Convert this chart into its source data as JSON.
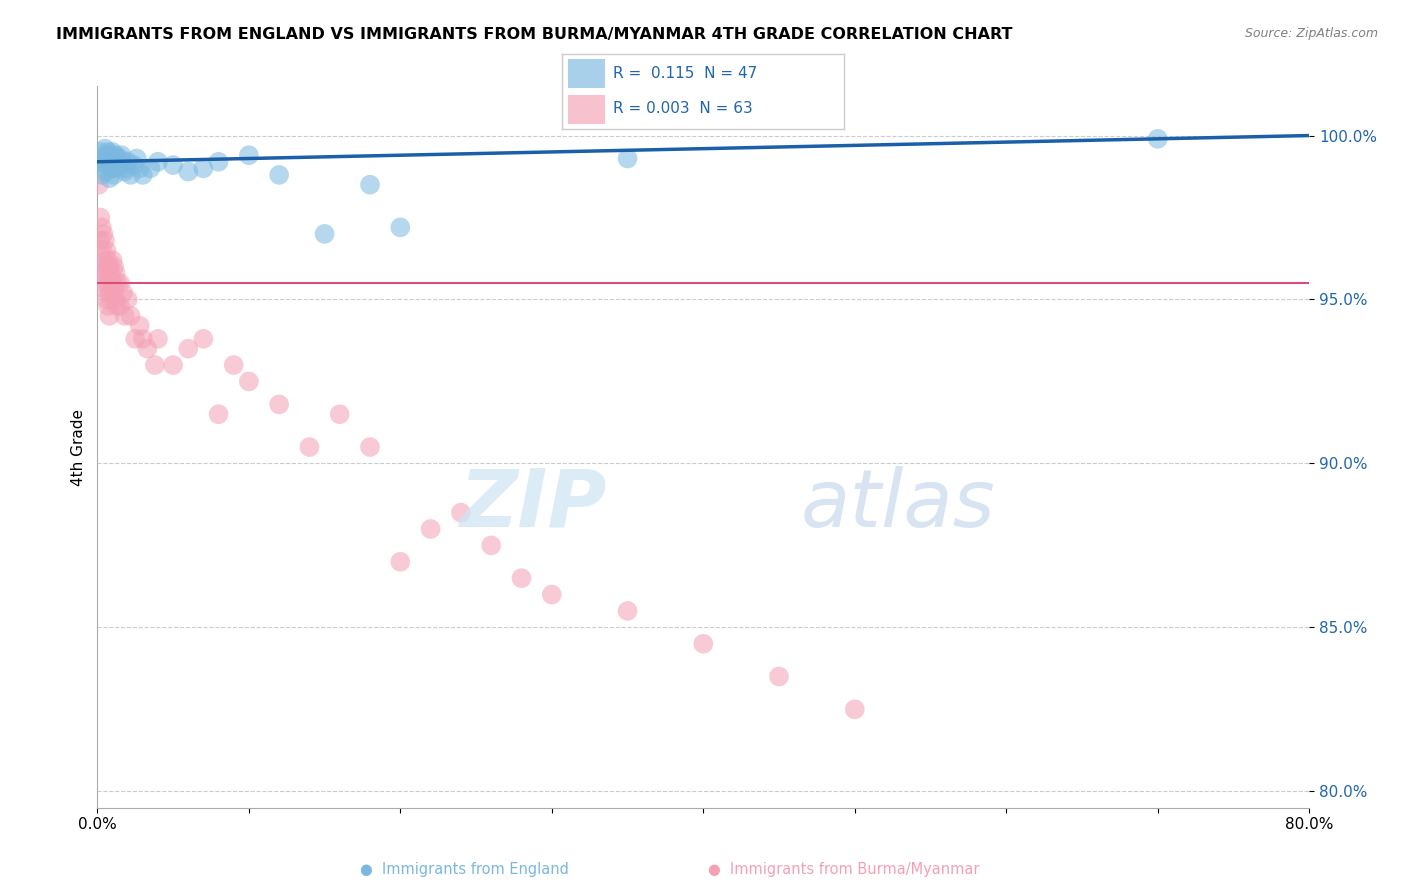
{
  "title": "IMMIGRANTS FROM ENGLAND VS IMMIGRANTS FROM BURMA/MYANMAR 4TH GRADE CORRELATION CHART",
  "source_text": "Source: ZipAtlas.com",
  "ylabel": "4th Grade",
  "xlim": [
    0.0,
    80.0
  ],
  "ylim": [
    79.5,
    101.5
  ],
  "yticks": [
    80.0,
    85.0,
    90.0,
    95.0,
    100.0
  ],
  "ytick_labels": [
    "80.0%",
    "85.0%",
    "90.0%",
    "95.0%",
    "100.0%"
  ],
  "xticks": [
    0.0,
    10.0,
    20.0,
    30.0,
    40.0,
    50.0,
    60.0,
    70.0,
    80.0
  ],
  "xtick_labels": [
    "0.0%",
    "",
    "",
    "",
    "",
    "",
    "",
    "",
    "80.0%"
  ],
  "legend_R_england": "0.115",
  "legend_N_england": "47",
  "legend_R_burma": "0.003",
  "legend_N_burma": "63",
  "england_color": "#7ab8e0",
  "burma_color": "#f4a0b5",
  "england_line_color": "#1a5fa8",
  "burma_line_color": "#d94f7a",
  "grid_color": "#cccccc",
  "eng_line_x0": 0.0,
  "eng_line_y0": 99.2,
  "eng_line_x1": 80.0,
  "eng_line_y1": 100.0,
  "bur_line_x0": 0.0,
  "bur_line_y0": 95.5,
  "bur_line_x1": 80.0,
  "bur_line_y1": 95.5,
  "blue_scatter_x": [
    0.2,
    0.3,
    0.3,
    0.4,
    0.5,
    0.5,
    0.6,
    0.6,
    0.7,
    0.7,
    0.8,
    0.8,
    0.9,
    0.9,
    1.0,
    1.0,
    1.1,
    1.1,
    1.2,
    1.2,
    1.3,
    1.3,
    1.4,
    1.5,
    1.6,
    1.7,
    1.8,
    1.9,
    2.0,
    2.2,
    2.4,
    2.6,
    2.8,
    3.0,
    3.5,
    4.0,
    5.0,
    6.0,
    7.0,
    8.0,
    10.0,
    12.0,
    15.0,
    18.0,
    20.0,
    35.0,
    70.0
  ],
  "blue_scatter_y": [
    99.5,
    99.2,
    98.8,
    99.3,
    99.6,
    99.1,
    99.4,
    98.9,
    99.5,
    99.2,
    99.3,
    98.7,
    99.4,
    99.1,
    99.5,
    99.0,
    99.3,
    98.8,
    99.4,
    99.2,
    99.3,
    99.0,
    99.2,
    99.3,
    99.4,
    99.1,
    98.9,
    99.0,
    99.2,
    98.8,
    99.1,
    99.3,
    99.0,
    98.8,
    99.0,
    99.2,
    99.1,
    98.9,
    99.0,
    99.2,
    99.4,
    98.8,
    97.0,
    98.5,
    97.2,
    99.3,
    99.9
  ],
  "pink_scatter_x": [
    0.1,
    0.2,
    0.2,
    0.3,
    0.3,
    0.3,
    0.4,
    0.4,
    0.4,
    0.5,
    0.5,
    0.5,
    0.6,
    0.6,
    0.6,
    0.7,
    0.7,
    0.7,
    0.8,
    0.8,
    0.8,
    0.9,
    0.9,
    1.0,
    1.0,
    1.1,
    1.1,
    1.2,
    1.2,
    1.3,
    1.3,
    1.5,
    1.5,
    1.7,
    1.8,
    2.0,
    2.2,
    2.5,
    2.8,
    3.0,
    3.3,
    3.8,
    4.0,
    5.0,
    6.0,
    7.0,
    8.0,
    9.0,
    10.0,
    12.0,
    14.0,
    16.0,
    18.0,
    20.0,
    22.0,
    24.0,
    26.0,
    28.0,
    30.0,
    35.0,
    40.0,
    45.0,
    50.0
  ],
  "pink_scatter_y": [
    98.5,
    97.5,
    96.8,
    97.2,
    96.5,
    95.8,
    97.0,
    96.2,
    95.5,
    96.8,
    96.0,
    95.3,
    96.5,
    95.8,
    95.0,
    96.2,
    95.5,
    94.8,
    96.0,
    95.2,
    94.5,
    95.8,
    95.0,
    96.2,
    95.5,
    96.0,
    95.3,
    95.8,
    95.0,
    95.5,
    94.8,
    95.5,
    94.8,
    95.2,
    94.5,
    95.0,
    94.5,
    93.8,
    94.2,
    93.8,
    93.5,
    93.0,
    93.8,
    93.0,
    93.5,
    93.8,
    91.5,
    93.0,
    92.5,
    91.8,
    90.5,
    91.5,
    90.5,
    87.0,
    88.0,
    88.5,
    87.5,
    86.5,
    86.0,
    85.5,
    84.5,
    83.5,
    82.5
  ]
}
